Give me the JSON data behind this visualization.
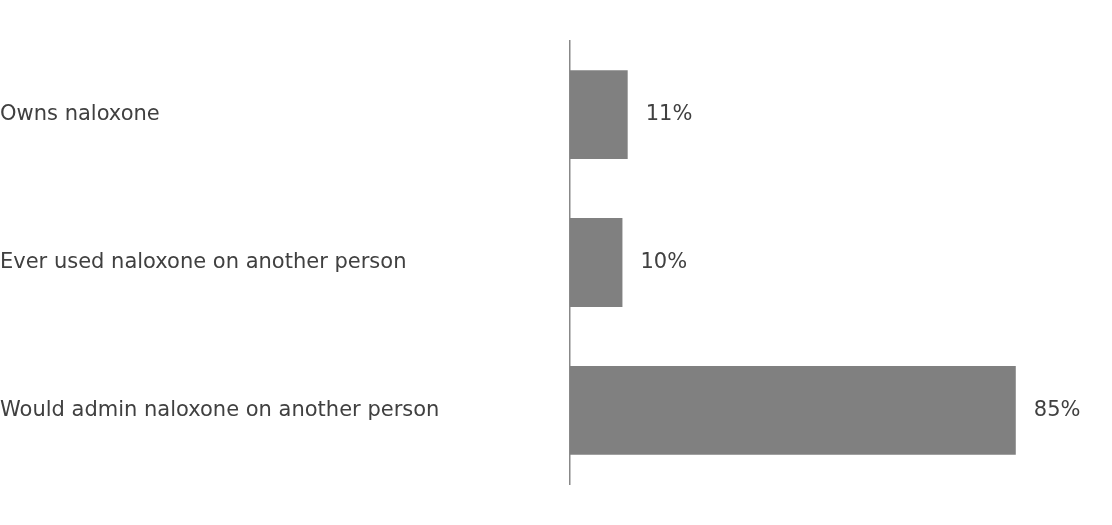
{
  "chart_data": {
    "type": "bar",
    "orientation": "horizontal",
    "categories": [
      "Owns naloxone",
      "Ever used naloxone on another person",
      "Would admin naloxone on another person"
    ],
    "values": [
      11,
      10,
      85
    ],
    "value_labels": [
      "11%",
      "10%",
      "85%"
    ],
    "color": "#808080",
    "grid": false,
    "legend": false
  }
}
